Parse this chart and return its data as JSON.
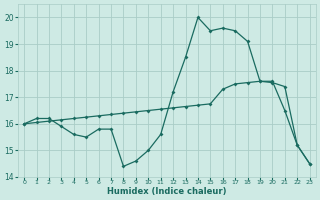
{
  "xlabel": "Humidex (Indice chaleur)",
  "ylabel": "",
  "bg_color": "#ceeae4",
  "grid_color": "#aacdc7",
  "line_color": "#1a6b60",
  "xlim": [
    -0.5,
    23.5
  ],
  "ylim": [
    14.0,
    20.5
  ],
  "xticks": [
    0,
    1,
    2,
    3,
    4,
    5,
    6,
    7,
    8,
    9,
    10,
    11,
    12,
    13,
    14,
    15,
    16,
    17,
    18,
    19,
    20,
    21,
    22,
    23
  ],
  "yticks": [
    14,
    15,
    16,
    17,
    18,
    19,
    20
  ],
  "series1_x": [
    0,
    1,
    2,
    3,
    4,
    5,
    6,
    7,
    8,
    9,
    10,
    11,
    12,
    13,
    14,
    15,
    16,
    17,
    18,
    19,
    20,
    21,
    22,
    23
  ],
  "series1_y": [
    16.0,
    16.2,
    16.2,
    15.9,
    15.6,
    15.5,
    15.8,
    15.8,
    14.4,
    14.6,
    15.0,
    15.6,
    17.2,
    18.5,
    20.0,
    19.5,
    19.6,
    19.5,
    19.1,
    17.6,
    17.6,
    16.5,
    15.2,
    14.5
  ],
  "series2_x": [
    0,
    1,
    2,
    3,
    4,
    5,
    6,
    7,
    8,
    9,
    10,
    11,
    12,
    13,
    14,
    15,
    16,
    17,
    18,
    19,
    20,
    21,
    22,
    23
  ],
  "series2_y": [
    16.0,
    16.05,
    16.1,
    16.15,
    16.2,
    16.25,
    16.3,
    16.35,
    16.4,
    16.45,
    16.5,
    16.55,
    16.6,
    16.65,
    16.7,
    16.75,
    17.3,
    17.5,
    17.55,
    17.6,
    17.55,
    17.4,
    15.2,
    14.5
  ],
  "marker_size": 2.0,
  "line_width": 0.9
}
